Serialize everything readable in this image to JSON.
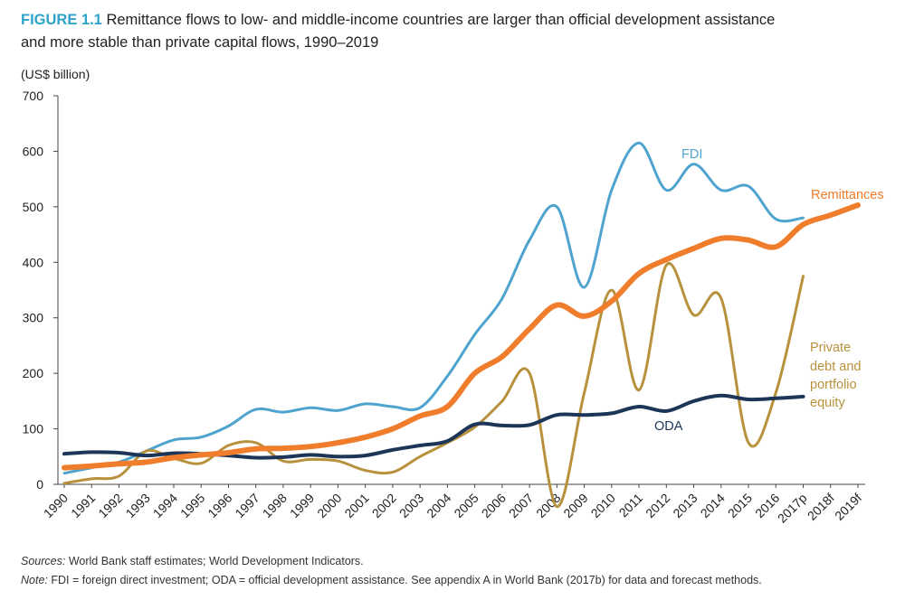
{
  "figure": {
    "label": "FIGURE 1.1",
    "title_line1": "Remittance flows to low- and middle-income countries are larger than official development assistance",
    "title_line2": "and more stable than private capital flows, 1990–2019"
  },
  "notes": {
    "sources_label": "Sources:",
    "sources_text": " World Bank staff estimates; World Development Indicators.",
    "note_label": "Note:",
    "note_text": " FDI = foreign direct investment; ODA = official development assistance. See appendix A in World Bank (2017b) for data and forecast methods."
  },
  "chart_data": {
    "type": "line",
    "title": "Remittance flows to low- and middle-income countries are larger than official development assistance and more stable than private capital flows, 1990–2019",
    "ylabel": "(US$ billion)",
    "xlabel": "",
    "ylim": [
      0,
      700
    ],
    "yticks": [
      0,
      100,
      200,
      300,
      400,
      500,
      600,
      700
    ],
    "categories": [
      "1990",
      "1991",
      "1992",
      "1993",
      "1994",
      "1995",
      "1996",
      "1997",
      "1998",
      "1999",
      "2000",
      "2001",
      "2002",
      "2003",
      "2004",
      "2005",
      "2006",
      "2007",
      "2008",
      "2009",
      "2010",
      "2011",
      "2012",
      "2013",
      "2014",
      "2015",
      "2016",
      "2017p",
      "2018f",
      "2019f"
    ],
    "grid": false,
    "series": [
      {
        "name": "FDI",
        "color": "#4fa3cf",
        "values": [
          20,
          30,
          40,
          60,
          80,
          85,
          105,
          135,
          130,
          138,
          133,
          145,
          140,
          138,
          195,
          270,
          335,
          440,
          500,
          355,
          530,
          615,
          530,
          577,
          530,
          537,
          478,
          480,
          null,
          null
        ]
      },
      {
        "name": "Remittances",
        "color": "#f07d2b",
        "values": [
          30,
          33,
          37,
          40,
          48,
          53,
          57,
          64,
          65,
          68,
          75,
          85,
          100,
          123,
          140,
          200,
          230,
          280,
          323,
          303,
          330,
          380,
          405,
          425,
          443,
          440,
          428,
          468,
          485,
          503
        ]
      },
      {
        "name": "Private debt and portfolio equity",
        "color": "#b8913d",
        "values": [
          2,
          10,
          15,
          60,
          47,
          38,
          70,
          75,
          42,
          45,
          42,
          25,
          22,
          50,
          75,
          103,
          150,
          200,
          -40,
          165,
          350,
          170,
          395,
          305,
          335,
          75,
          165,
          375,
          null,
          null
        ]
      },
      {
        "name": "ODA",
        "color": "#1d3557",
        "values": [
          55,
          58,
          57,
          52,
          56,
          55,
          52,
          48,
          49,
          53,
          50,
          52,
          62,
          70,
          78,
          108,
          106,
          107,
          125,
          125,
          128,
          140,
          132,
          150,
          160,
          153,
          155,
          158,
          null,
          null
        ]
      }
    ],
    "series_labels": {
      "fdi": "FDI",
      "remittances": "Remittances",
      "private_line1": "Private",
      "private_line2": "debt and",
      "private_line3": "portfolio",
      "private_line4": "equity",
      "oda": "ODA"
    }
  }
}
